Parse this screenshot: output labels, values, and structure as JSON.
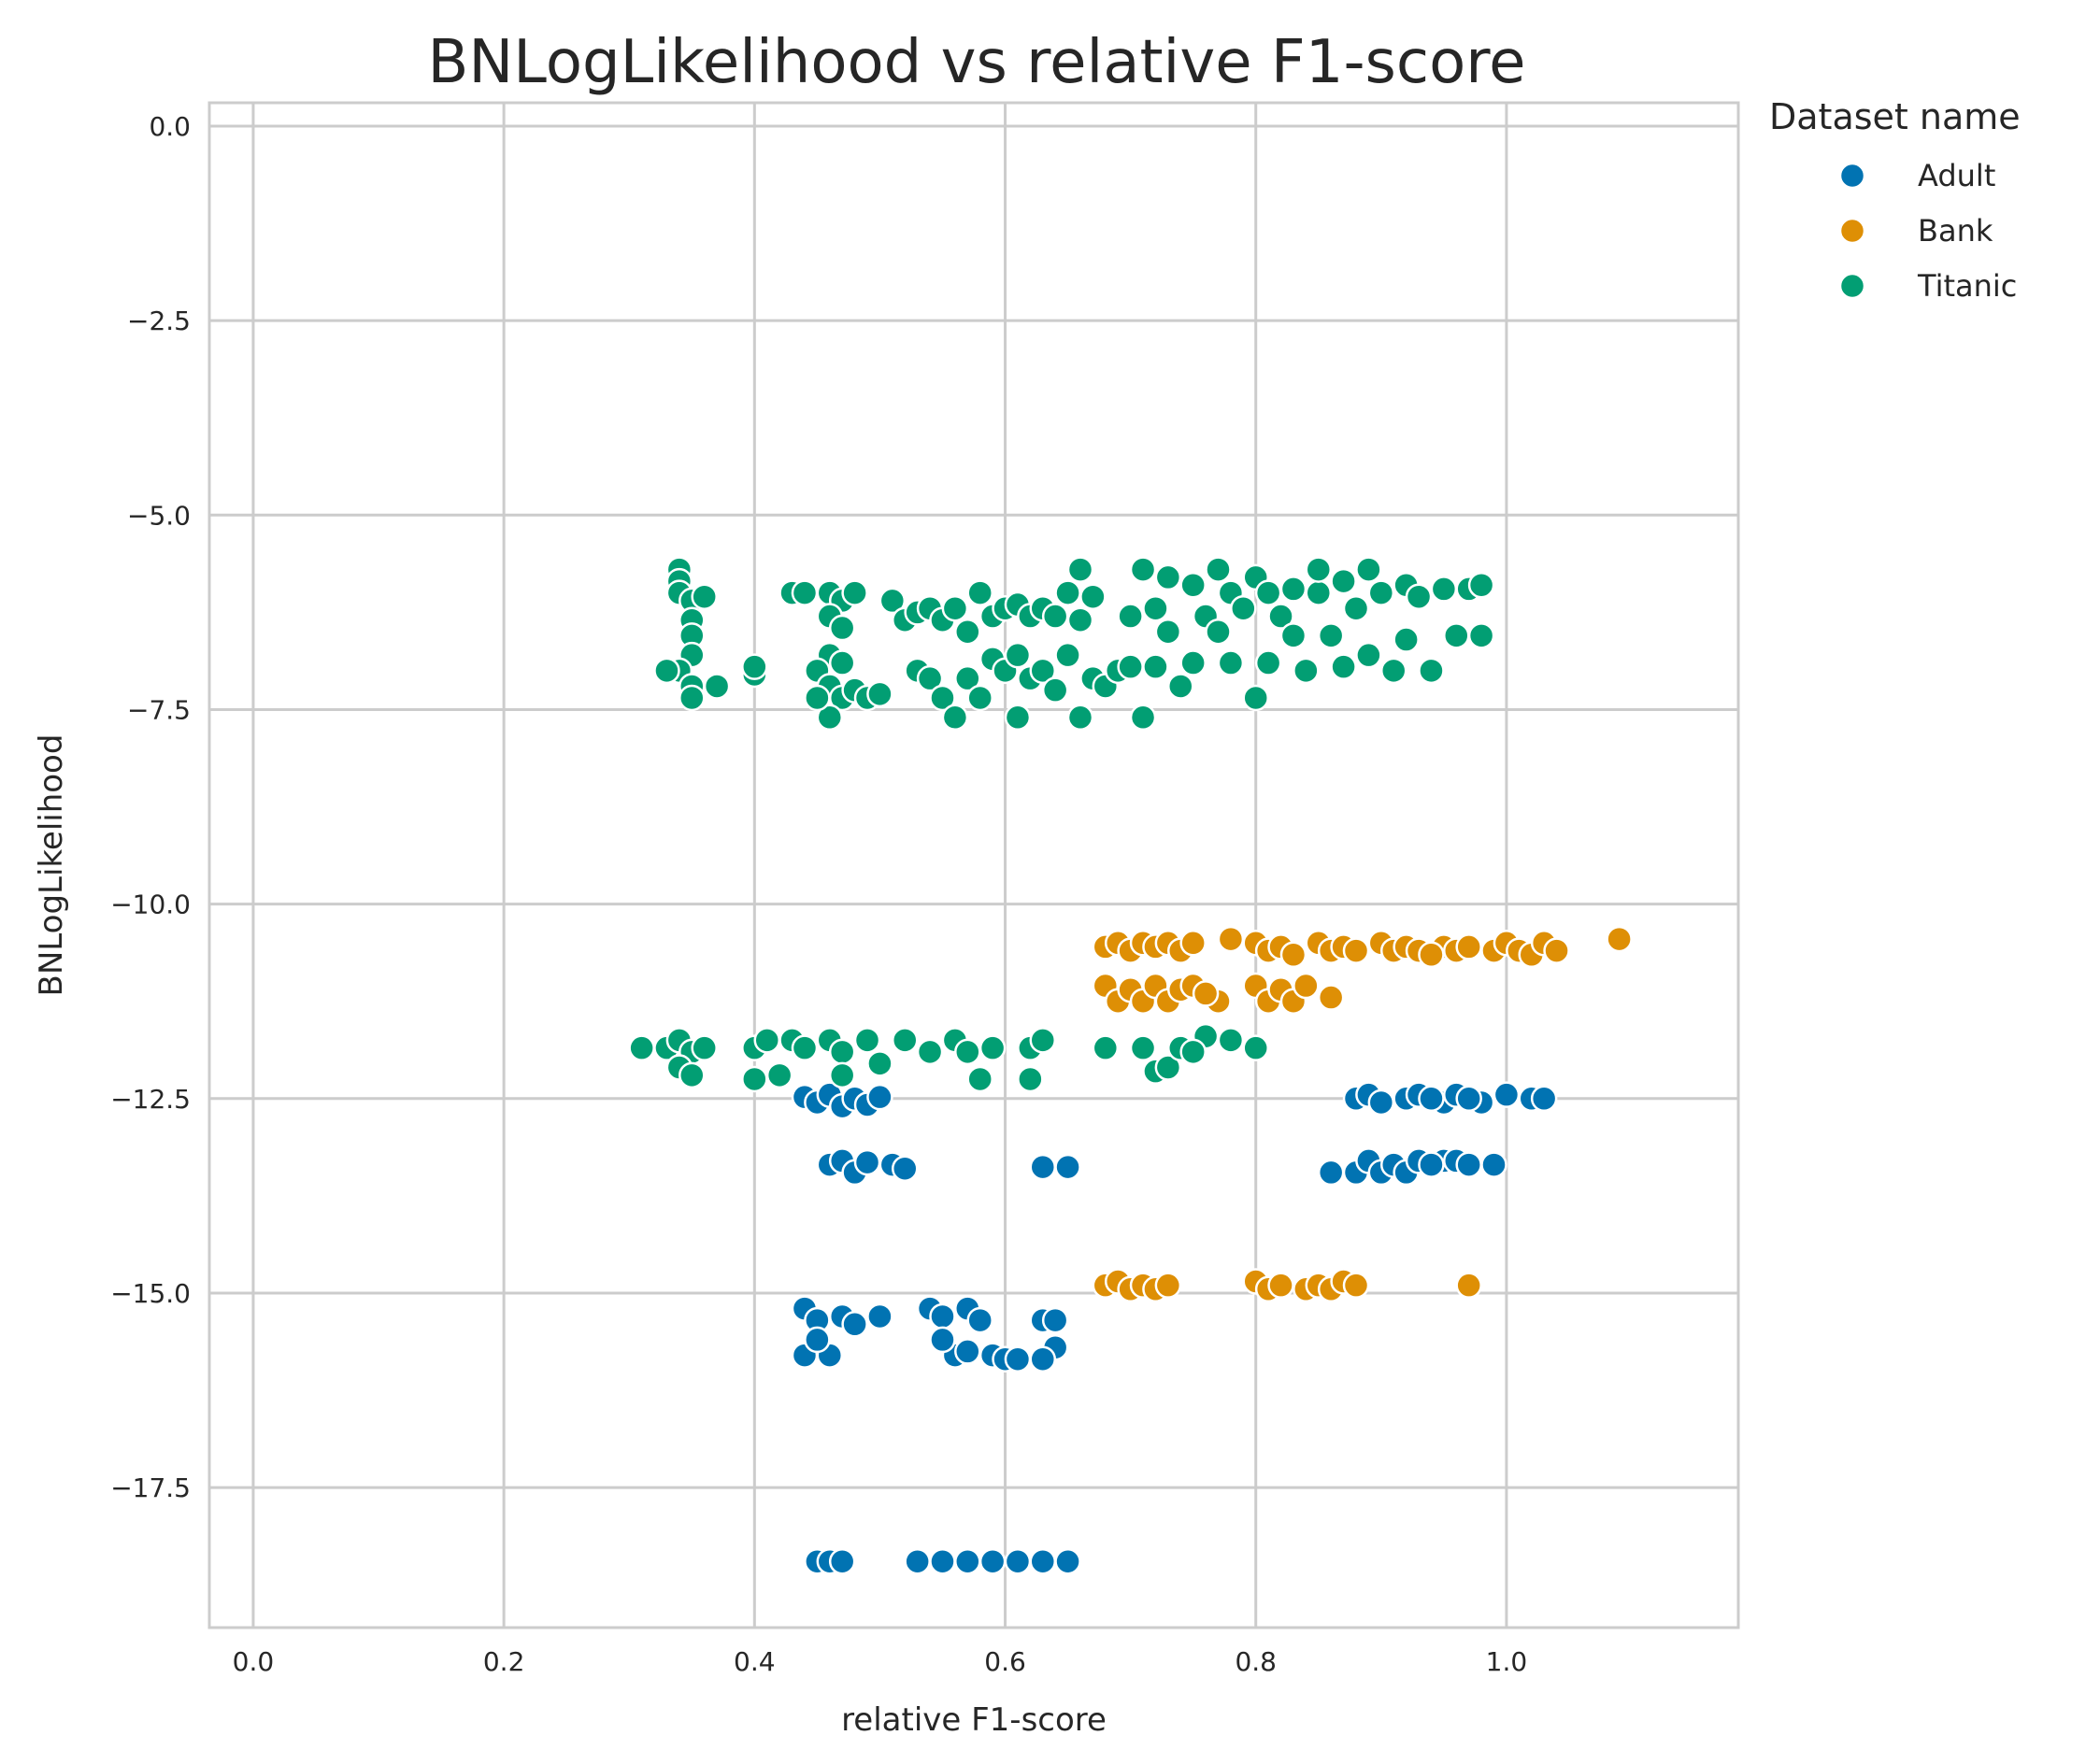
{
  "chart_data": {
    "type": "scatter",
    "title": "BNLogLikelihood vs relative F1-score",
    "xlabel": "relative F1-score",
    "ylabel": "BNLogLikelihood",
    "xlim": [
      -0.035,
      1.185
    ],
    "ylim": [
      -19.3,
      0.3
    ],
    "xticks": [
      0.0,
      0.2,
      0.4,
      0.6,
      0.8,
      1.0
    ],
    "xtick_labels": [
      "0.0",
      "0.2",
      "0.4",
      "0.6",
      "0.8",
      "1.0"
    ],
    "yticks": [
      0.0,
      -2.5,
      -5.0,
      -7.5,
      -10.0,
      -12.5,
      -15.0,
      -17.5
    ],
    "ytick_labels": [
      "0.0",
      "−2.5",
      "−5.0",
      "−7.5",
      "−10.0",
      "−12.5",
      "−15.0",
      "−17.5"
    ],
    "grid": true,
    "legend": {
      "title": "Dataset name",
      "placement": "outside-top-right"
    },
    "series": [
      {
        "name": "Adult",
        "color": "#0173b2",
        "points": [
          [
            0.44,
            -12.48
          ],
          [
            0.45,
            -12.55
          ],
          [
            0.46,
            -12.45
          ],
          [
            0.47,
            -12.6
          ],
          [
            0.48,
            -12.5
          ],
          [
            0.49,
            -12.58
          ],
          [
            0.5,
            -12.48
          ],
          [
            0.46,
            -13.35
          ],
          [
            0.47,
            -13.3
          ],
          [
            0.48,
            -13.45
          ],
          [
            0.49,
            -13.32
          ],
          [
            0.51,
            -13.35
          ],
          [
            0.52,
            -13.4
          ],
          [
            0.63,
            -13.38
          ],
          [
            0.65,
            -13.38
          ],
          [
            0.44,
            -15.2
          ],
          [
            0.45,
            -15.35
          ],
          [
            0.46,
            -15.8
          ],
          [
            0.47,
            -15.3
          ],
          [
            0.48,
            -15.4
          ],
          [
            0.5,
            -15.3
          ],
          [
            0.44,
            -15.8
          ],
          [
            0.45,
            -15.6
          ],
          [
            0.54,
            -15.2
          ],
          [
            0.55,
            -15.3
          ],
          [
            0.56,
            -15.8
          ],
          [
            0.57,
            -15.2
          ],
          [
            0.58,
            -15.35
          ],
          [
            0.59,
            -15.8
          ],
          [
            0.6,
            -15.85
          ],
          [
            0.61,
            -15.85
          ],
          [
            0.63,
            -15.35
          ],
          [
            0.64,
            -15.35
          ],
          [
            0.64,
            -15.7
          ],
          [
            0.63,
            -15.85
          ],
          [
            0.55,
            -15.6
          ],
          [
            0.57,
            -15.75
          ],
          [
            0.45,
            -18.45
          ],
          [
            0.46,
            -18.45
          ],
          [
            0.47,
            -18.45
          ],
          [
            0.53,
            -18.45
          ],
          [
            0.55,
            -18.45
          ],
          [
            0.57,
            -18.45
          ],
          [
            0.59,
            -18.45
          ],
          [
            0.61,
            -18.45
          ],
          [
            0.63,
            -18.45
          ],
          [
            0.65,
            -18.45
          ],
          [
            0.88,
            -12.5
          ],
          [
            0.89,
            -12.45
          ],
          [
            0.9,
            -12.55
          ],
          [
            0.92,
            -12.5
          ],
          [
            0.93,
            -12.45
          ],
          [
            0.95,
            -12.55
          ],
          [
            0.96,
            -12.45
          ],
          [
            0.98,
            -12.55
          ],
          [
            1.0,
            -12.45
          ],
          [
            1.02,
            -12.5
          ],
          [
            1.03,
            -12.5
          ],
          [
            0.94,
            -12.5
          ],
          [
            0.97,
            -12.5
          ],
          [
            0.86,
            -13.45
          ],
          [
            0.88,
            -13.45
          ],
          [
            0.89,
            -13.3
          ],
          [
            0.9,
            -13.45
          ],
          [
            0.91,
            -13.35
          ],
          [
            0.92,
            -13.45
          ],
          [
            0.93,
            -13.3
          ],
          [
            0.95,
            -13.3
          ],
          [
            0.96,
            -13.3
          ],
          [
            0.97,
            -13.35
          ],
          [
            0.99,
            -13.35
          ],
          [
            0.94,
            -13.35
          ]
        ]
      },
      {
        "name": "Bank",
        "color": "#de8f05",
        "points": [
          [
            0.68,
            -10.55
          ],
          [
            0.69,
            -10.5
          ],
          [
            0.7,
            -10.6
          ],
          [
            0.71,
            -10.5
          ],
          [
            0.72,
            -10.55
          ],
          [
            0.73,
            -10.5
          ],
          [
            0.74,
            -10.6
          ],
          [
            0.75,
            -10.5
          ],
          [
            0.78,
            -10.45
          ],
          [
            0.8,
            -10.5
          ],
          [
            0.81,
            -10.6
          ],
          [
            0.82,
            -10.55
          ],
          [
            0.83,
            -10.65
          ],
          [
            0.85,
            -10.5
          ],
          [
            0.86,
            -10.6
          ],
          [
            0.87,
            -10.55
          ],
          [
            0.88,
            -10.6
          ],
          [
            0.9,
            -10.5
          ],
          [
            0.91,
            -10.6
          ],
          [
            0.92,
            -10.55
          ],
          [
            0.93,
            -10.6
          ],
          [
            0.95,
            -10.55
          ],
          [
            0.96,
            -10.6
          ],
          [
            0.97,
            -10.55
          ],
          [
            0.99,
            -10.6
          ],
          [
            1.0,
            -10.5
          ],
          [
            1.01,
            -10.6
          ],
          [
            1.02,
            -10.65
          ],
          [
            1.03,
            -10.5
          ],
          [
            1.04,
            -10.6
          ],
          [
            1.09,
            -10.45
          ],
          [
            0.94,
            -10.65
          ],
          [
            0.68,
            -11.05
          ],
          [
            0.69,
            -11.25
          ],
          [
            0.7,
            -11.1
          ],
          [
            0.71,
            -11.25
          ],
          [
            0.72,
            -11.05
          ],
          [
            0.73,
            -11.25
          ],
          [
            0.74,
            -11.1
          ],
          [
            0.75,
            -11.05
          ],
          [
            0.77,
            -11.25
          ],
          [
            0.8,
            -11.05
          ],
          [
            0.81,
            -11.25
          ],
          [
            0.82,
            -11.1
          ],
          [
            0.83,
            -11.25
          ],
          [
            0.84,
            -11.05
          ],
          [
            0.86,
            -11.2
          ],
          [
            0.76,
            -11.15
          ],
          [
            0.68,
            -14.9
          ],
          [
            0.69,
            -14.85
          ],
          [
            0.7,
            -14.95
          ],
          [
            0.71,
            -14.9
          ],
          [
            0.72,
            -14.95
          ],
          [
            0.73,
            -14.9
          ],
          [
            0.8,
            -14.85
          ],
          [
            0.81,
            -14.95
          ],
          [
            0.82,
            -14.9
          ],
          [
            0.84,
            -14.95
          ],
          [
            0.85,
            -14.9
          ],
          [
            0.86,
            -14.95
          ],
          [
            0.87,
            -14.85
          ],
          [
            0.88,
            -14.9
          ],
          [
            0.97,
            -14.9
          ]
        ]
      },
      {
        "name": "Titanic",
        "color": "#029e73",
        "points": [
          [
            0.34,
            -5.7
          ],
          [
            0.34,
            -5.85
          ],
          [
            0.34,
            -6.0
          ],
          [
            0.35,
            -6.1
          ],
          [
            0.35,
            -6.35
          ],
          [
            0.35,
            -6.55
          ],
          [
            0.35,
            -6.8
          ],
          [
            0.34,
            -7.0
          ],
          [
            0.35,
            -7.2
          ],
          [
            0.35,
            -7.35
          ],
          [
            0.33,
            -7.0
          ],
          [
            0.36,
            -6.05
          ],
          [
            0.37,
            -7.2
          ],
          [
            0.4,
            -7.05
          ],
          [
            0.4,
            -6.95
          ],
          [
            0.43,
            -6.0
          ],
          [
            0.44,
            -6.0
          ],
          [
            0.46,
            -6.0
          ],
          [
            0.47,
            -6.1
          ],
          [
            0.48,
            -6.0
          ],
          [
            0.46,
            -6.3
          ],
          [
            0.47,
            -6.45
          ],
          [
            0.46,
            -6.8
          ],
          [
            0.47,
            -6.9
          ],
          [
            0.45,
            -7.0
          ],
          [
            0.46,
            -7.2
          ],
          [
            0.47,
            -7.35
          ],
          [
            0.48,
            -7.25
          ],
          [
            0.46,
            -7.6
          ],
          [
            0.49,
            -7.35
          ],
          [
            0.5,
            -7.3
          ],
          [
            0.45,
            -7.35
          ],
          [
            0.51,
            -6.1
          ],
          [
            0.52,
            -6.35
          ],
          [
            0.53,
            -6.25
          ],
          [
            0.54,
            -6.2
          ],
          [
            0.55,
            -6.35
          ],
          [
            0.56,
            -6.2
          ],
          [
            0.57,
            -6.5
          ],
          [
            0.58,
            -6.0
          ],
          [
            0.59,
            -6.3
          ],
          [
            0.6,
            -6.2
          ],
          [
            0.61,
            -6.15
          ],
          [
            0.62,
            -6.3
          ],
          [
            0.63,
            -6.2
          ],
          [
            0.64,
            -6.3
          ],
          [
            0.65,
            -6.0
          ],
          [
            0.66,
            -5.7
          ],
          [
            0.66,
            -6.35
          ],
          [
            0.67,
            -6.05
          ],
          [
            0.53,
            -7.0
          ],
          [
            0.54,
            -7.1
          ],
          [
            0.55,
            -7.35
          ],
          [
            0.56,
            -7.6
          ],
          [
            0.57,
            -7.1
          ],
          [
            0.58,
            -7.35
          ],
          [
            0.59,
            -6.85
          ],
          [
            0.6,
            -7.0
          ],
          [
            0.61,
            -6.8
          ],
          [
            0.61,
            -7.6
          ],
          [
            0.62,
            -7.1
          ],
          [
            0.63,
            -7.0
          ],
          [
            0.64,
            -7.25
          ],
          [
            0.65,
            -6.8
          ],
          [
            0.66,
            -7.6
          ],
          [
            0.67,
            -7.1
          ],
          [
            0.68,
            -7.2
          ],
          [
            0.69,
            -7.0
          ],
          [
            0.7,
            -6.3
          ],
          [
            0.7,
            -6.95
          ],
          [
            0.71,
            -7.6
          ],
          [
            0.71,
            -5.7
          ],
          [
            0.72,
            -6.2
          ],
          [
            0.72,
            -6.95
          ],
          [
            0.73,
            -5.8
          ],
          [
            0.73,
            -6.5
          ],
          [
            0.74,
            -7.2
          ],
          [
            0.75,
            -5.9
          ],
          [
            0.75,
            -6.9
          ],
          [
            0.76,
            -6.3
          ],
          [
            0.77,
            -5.7
          ],
          [
            0.77,
            -6.5
          ],
          [
            0.78,
            -6.0
          ],
          [
            0.78,
            -6.9
          ],
          [
            0.79,
            -6.2
          ],
          [
            0.8,
            -5.8
          ],
          [
            0.8,
            -7.35
          ],
          [
            0.81,
            -6.0
          ],
          [
            0.81,
            -6.9
          ],
          [
            0.82,
            -6.3
          ],
          [
            0.83,
            -5.95
          ],
          [
            0.83,
            -6.55
          ],
          [
            0.84,
            -7.0
          ],
          [
            0.85,
            -6.0
          ],
          [
            0.85,
            -5.7
          ],
          [
            0.86,
            -6.55
          ],
          [
            0.87,
            -5.85
          ],
          [
            0.87,
            -6.95
          ],
          [
            0.88,
            -6.2
          ],
          [
            0.89,
            -5.7
          ],
          [
            0.89,
            -6.8
          ],
          [
            0.9,
            -6.0
          ],
          [
            0.91,
            -7.0
          ],
          [
            0.92,
            -5.9
          ],
          [
            0.92,
            -6.6
          ],
          [
            0.93,
            -6.05
          ],
          [
            0.94,
            -7.0
          ],
          [
            0.95,
            -5.95
          ],
          [
            0.96,
            -6.55
          ],
          [
            0.97,
            -5.95
          ],
          [
            0.98,
            -6.55
          ],
          [
            0.98,
            -5.9
          ],
          [
            0.31,
            -11.85
          ],
          [
            0.33,
            -11.85
          ],
          [
            0.34,
            -11.75
          ],
          [
            0.35,
            -11.9
          ],
          [
            0.34,
            -12.1
          ],
          [
            0.35,
            -12.2
          ],
          [
            0.36,
            -11.85
          ],
          [
            0.4,
            -11.85
          ],
          [
            0.41,
            -11.75
          ],
          [
            0.4,
            -12.25
          ],
          [
            0.42,
            -12.2
          ],
          [
            0.43,
            -11.75
          ],
          [
            0.44,
            -11.85
          ],
          [
            0.46,
            -11.75
          ],
          [
            0.47,
            -11.9
          ],
          [
            0.47,
            -12.2
          ],
          [
            0.49,
            -11.75
          ],
          [
            0.5,
            -12.05
          ],
          [
            0.52,
            -11.75
          ],
          [
            0.54,
            -11.9
          ],
          [
            0.56,
            -11.75
          ],
          [
            0.57,
            -11.9
          ],
          [
            0.58,
            -12.25
          ],
          [
            0.59,
            -11.85
          ],
          [
            0.62,
            -11.85
          ],
          [
            0.62,
            -12.25
          ],
          [
            0.63,
            -11.75
          ],
          [
            0.68,
            -11.85
          ],
          [
            0.71,
            -11.85
          ],
          [
            0.72,
            -12.15
          ],
          [
            0.73,
            -12.1
          ],
          [
            0.74,
            -11.85
          ],
          [
            0.76,
            -11.7
          ],
          [
            0.78,
            -11.75
          ],
          [
            0.8,
            -11.85
          ],
          [
            0.75,
            -11.9
          ]
        ]
      }
    ]
  }
}
